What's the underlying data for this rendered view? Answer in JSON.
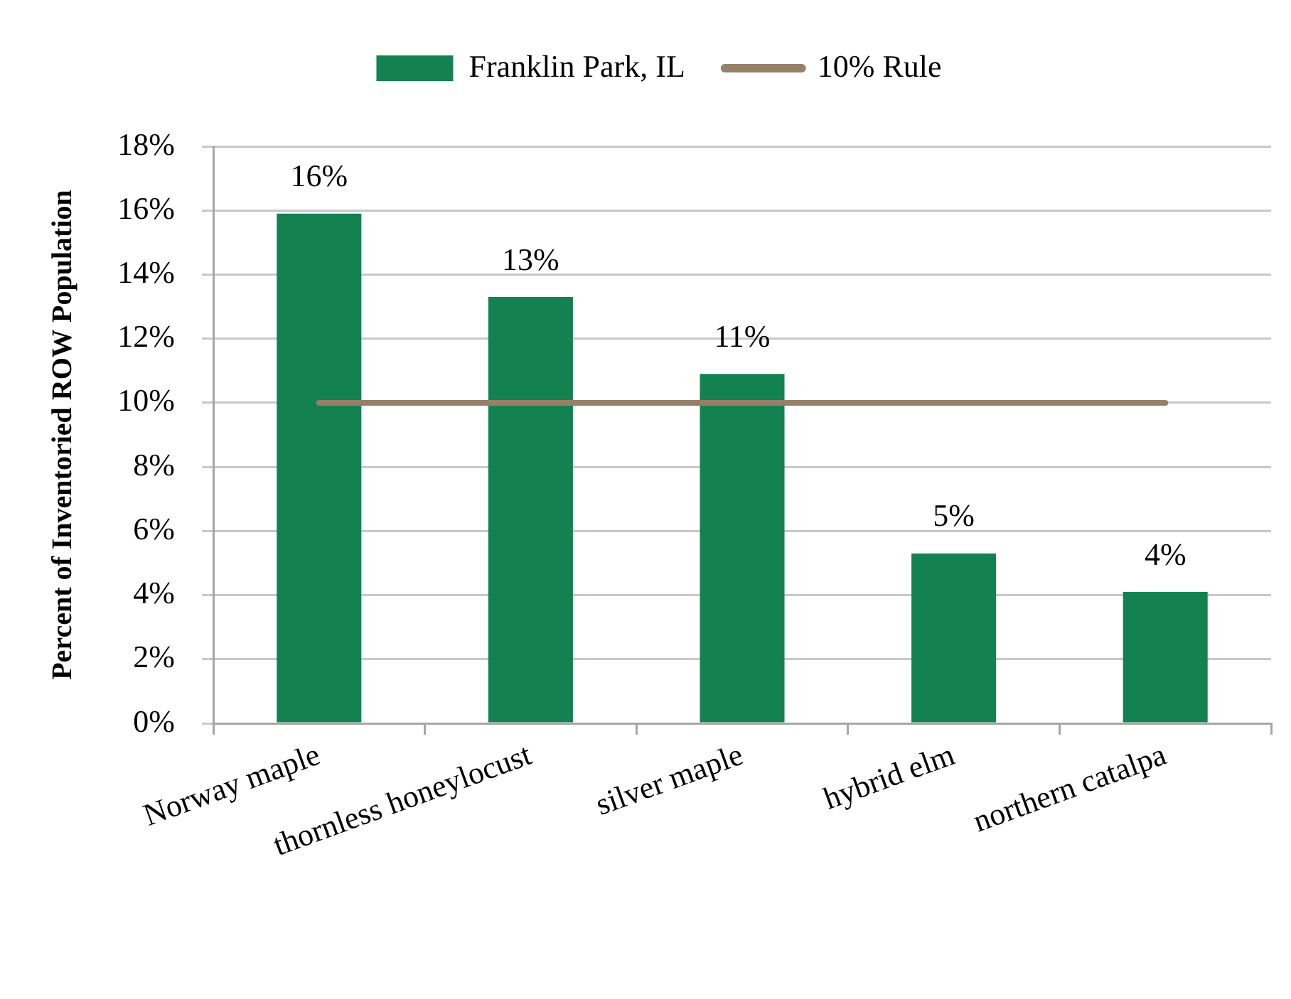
{
  "chart_data": {
    "type": "bar",
    "ylabel": "Percent of Inventoried ROW Population",
    "categories": [
      "Norway maple",
      "thornless honeylocust",
      "silver maple",
      "hybrid elm",
      "northern catalpa"
    ],
    "series": [
      {
        "name": "Franklin Park, IL",
        "color": "#148250",
        "values": [
          15.9,
          13.3,
          10.9,
          5.3,
          4.1
        ],
        "value_labels": [
          "16%",
          "13%",
          "11%",
          "5%",
          "4%"
        ]
      },
      {
        "name": "10% Rule",
        "type": "line",
        "color": "#958069",
        "values": [
          10,
          10,
          10,
          10,
          10
        ],
        "marker": "none"
      }
    ],
    "ylim": [
      0,
      18
    ],
    "yticks": [
      {
        "value": 0,
        "label": "0%"
      },
      {
        "value": 2,
        "label": "2%"
      },
      {
        "value": 4,
        "label": "4%"
      },
      {
        "value": 6,
        "label": "6%"
      },
      {
        "value": 8,
        "label": "8%"
      },
      {
        "value": 10,
        "label": "10%"
      },
      {
        "value": 12,
        "label": "12%"
      },
      {
        "value": 14,
        "label": "14%"
      },
      {
        "value": 16,
        "label": "16%"
      },
      {
        "value": 18,
        "label": "18%"
      }
    ],
    "grid": "y",
    "legend": "top"
  }
}
